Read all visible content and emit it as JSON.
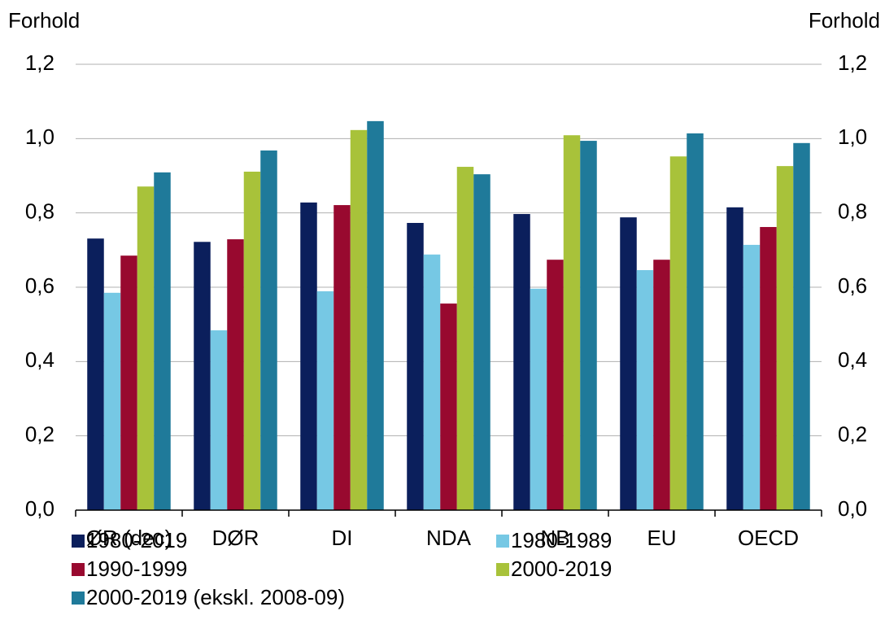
{
  "chart_data": {
    "type": "bar",
    "y_label": "Forhold",
    "y2_label": "Forhold",
    "categories": [
      "ØR (dec)",
      "DØR",
      "DI",
      "NDA",
      "NB",
      "EU",
      "OECD"
    ],
    "series": [
      {
        "name": "1980-2019",
        "color": "#0b1f5c",
        "values": [
          0.731,
          0.722,
          0.828,
          0.773,
          0.797,
          0.788,
          0.815
        ]
      },
      {
        "name": "1980-1989",
        "color": "#76c8e4",
        "values": [
          0.585,
          0.484,
          0.589,
          0.688,
          0.596,
          0.646,
          0.714
        ]
      },
      {
        "name": "1990-1999",
        "color": "#98092f",
        "values": [
          0.685,
          0.729,
          0.821,
          0.556,
          0.674,
          0.674,
          0.762
        ]
      },
      {
        "name": "2000-2019",
        "color": "#a8c23a",
        "values": [
          0.871,
          0.911,
          1.023,
          0.924,
          1.009,
          0.952,
          0.926
        ]
      },
      {
        "name": "2000-2019 (ekskl. 2008-09)",
        "color": "#1f7a9a",
        "values": [
          0.909,
          0.968,
          1.047,
          0.904,
          0.994,
          1.014,
          0.988
        ]
      }
    ],
    "ylim": [
      0,
      1.2
    ],
    "yticks": [
      {
        "value": 0,
        "label": "0,0"
      },
      {
        "value": 0.2,
        "label": "0,2"
      },
      {
        "value": 0.4,
        "label": "0,4"
      },
      {
        "value": 0.6,
        "label": "0,6"
      },
      {
        "value": 0.8,
        "label": "0,8"
      },
      {
        "value": 1.0,
        "label": "1,0"
      },
      {
        "value": 1.2,
        "label": "1,2"
      }
    ],
    "y2lim": [
      0,
      1.2
    ],
    "y2ticks": [
      {
        "value": 0,
        "label": "0,0"
      },
      {
        "value": 0.2,
        "label": "0,2"
      },
      {
        "value": 0.4,
        "label": "0,4"
      },
      {
        "value": 0.6,
        "label": "0,6"
      },
      {
        "value": 0.8,
        "label": "0,8"
      },
      {
        "value": 1.0,
        "label": "1,0"
      },
      {
        "value": 1.2,
        "label": "1,2"
      }
    ],
    "grid": true
  }
}
